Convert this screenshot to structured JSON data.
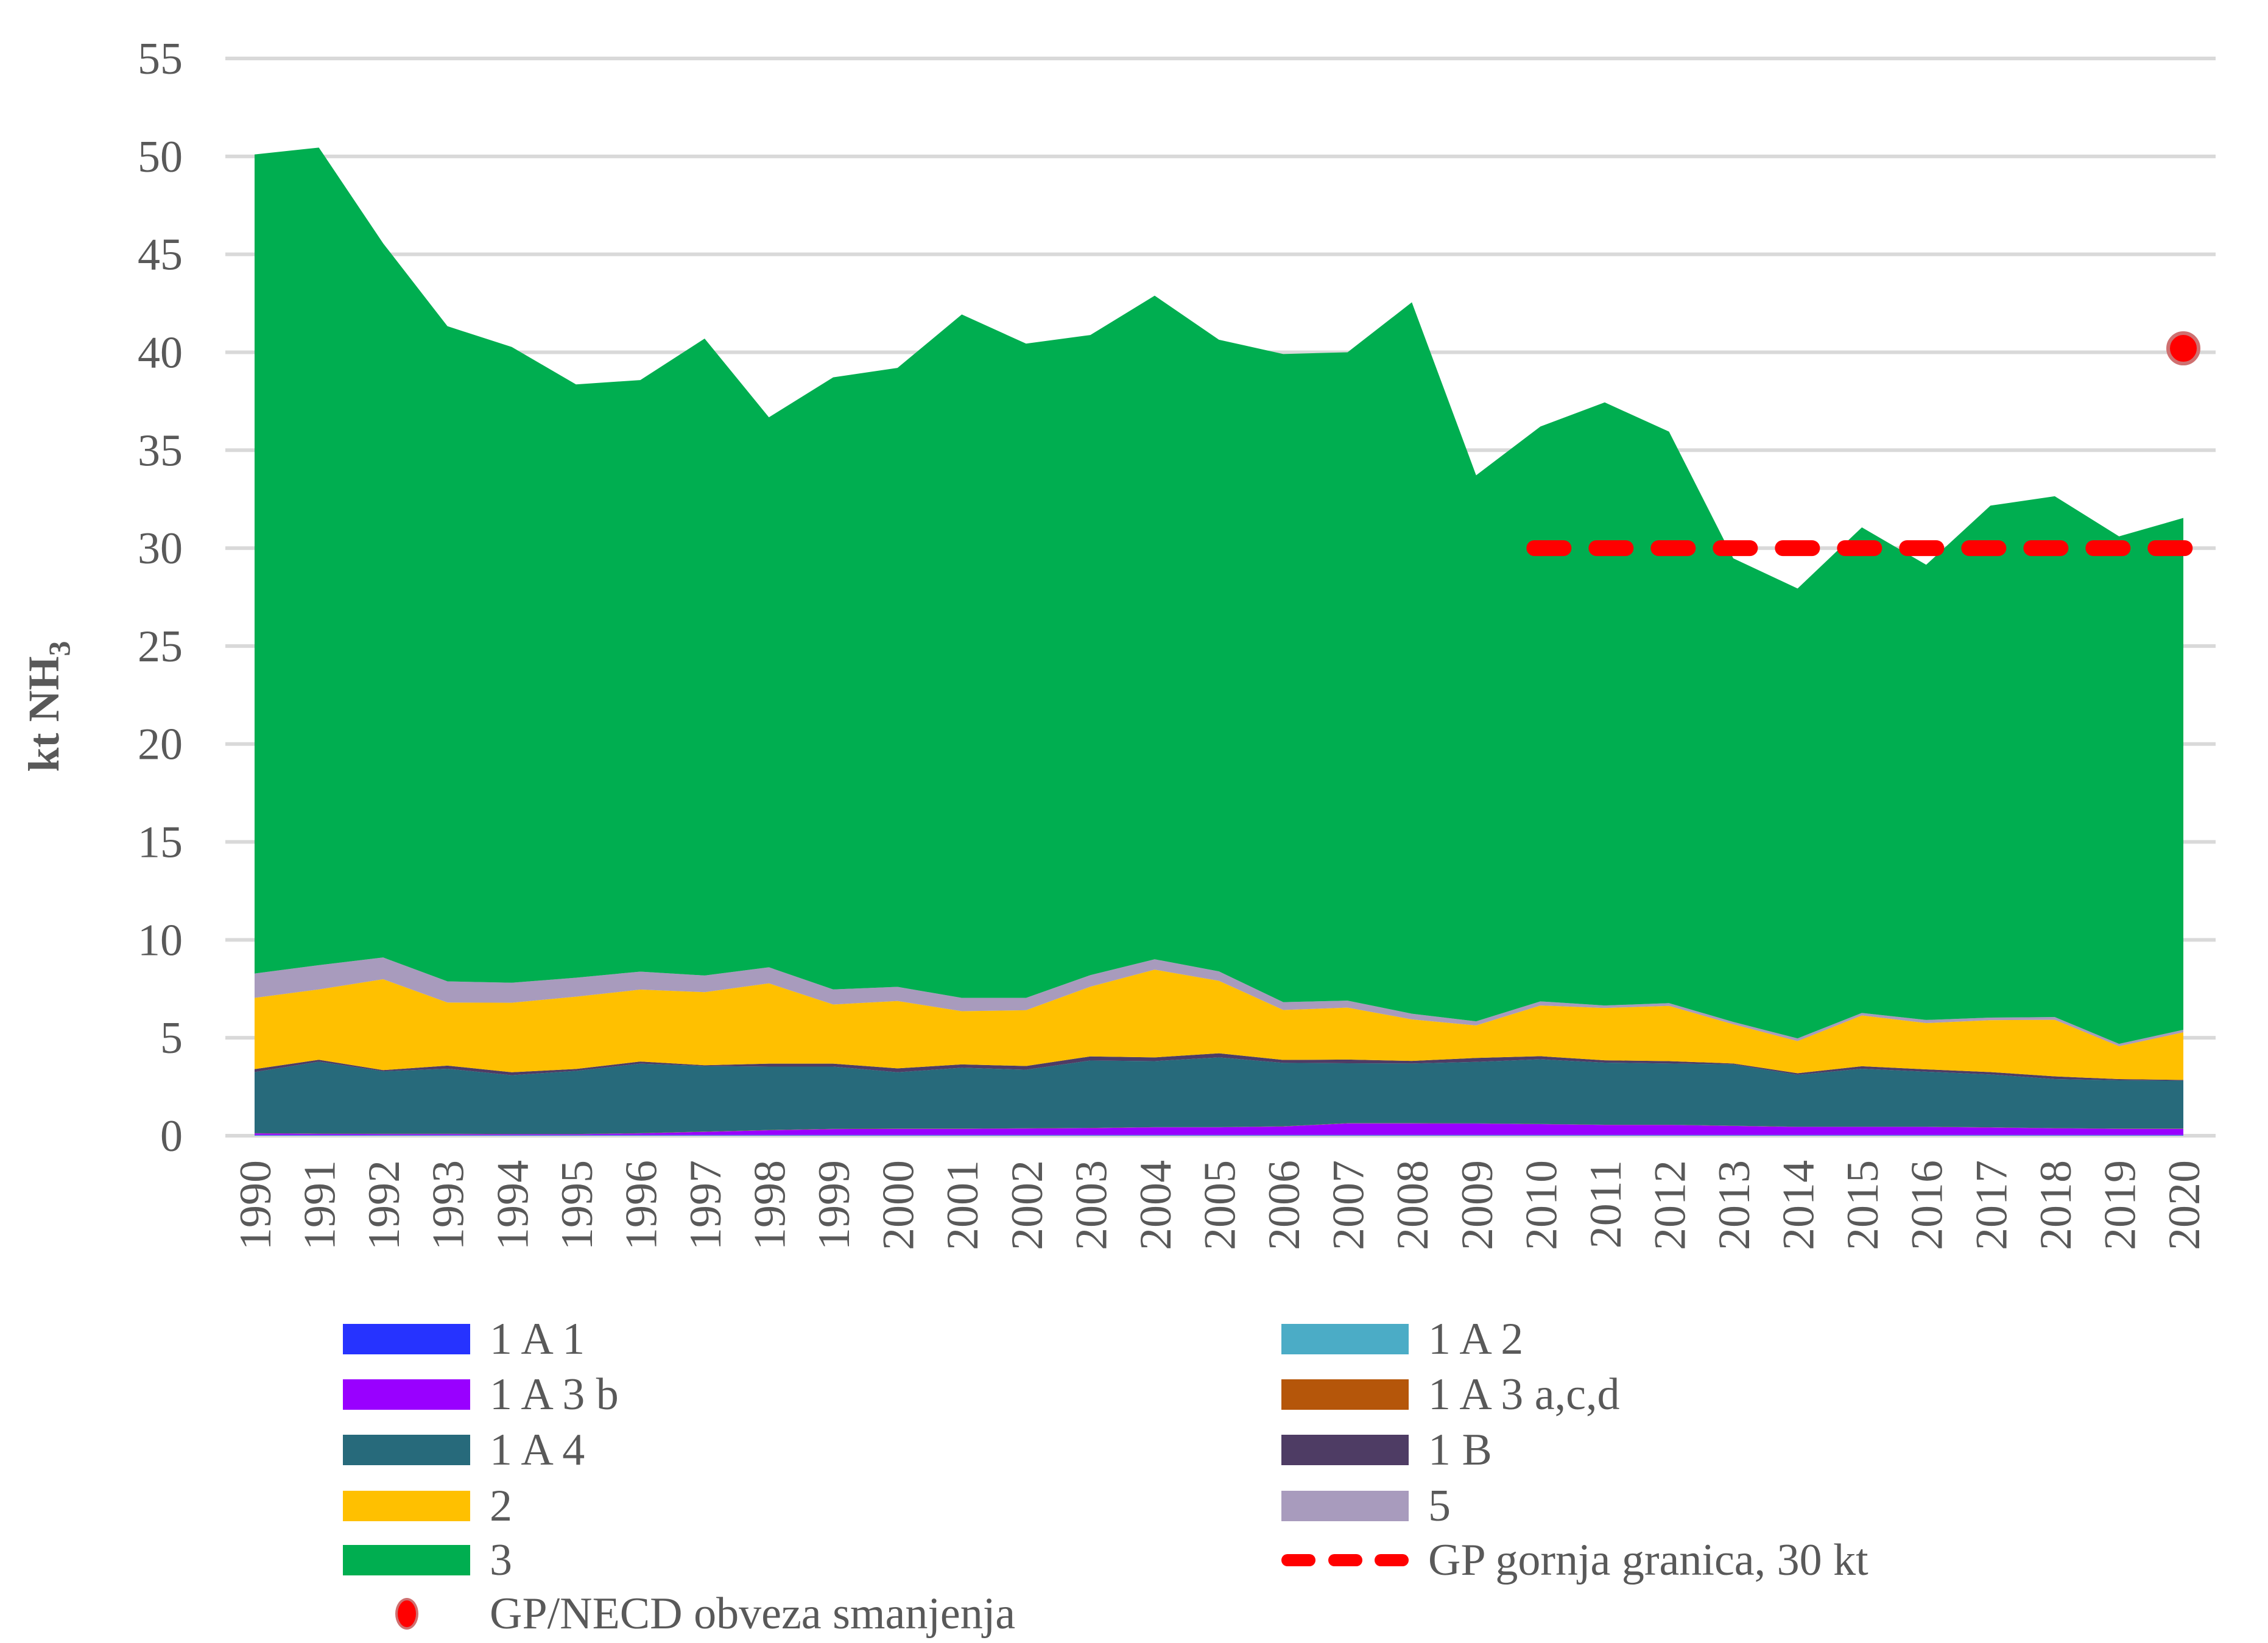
{
  "chart_data": {
    "type": "area",
    "stacked": true,
    "title": "",
    "xlabel": "",
    "ylabel": "kt NH",
    "ylabel_subscript": "3",
    "ylim": [
      0,
      55
    ],
    "yticks": [
      0,
      5,
      10,
      15,
      20,
      25,
      30,
      35,
      40,
      45,
      50,
      55
    ],
    "grid": true,
    "legend_position": "bottom",
    "categories": [
      "1990",
      "1991",
      "1992",
      "1993",
      "1994",
      "1995",
      "1996",
      "1997",
      "1998",
      "1999",
      "2000",
      "2001",
      "2002",
      "2003",
      "2004",
      "2005",
      "2006",
      "2007",
      "2008",
      "2009",
      "2010",
      "2011",
      "2012",
      "2013",
      "2014",
      "2015",
      "2016",
      "2017",
      "2018",
      "2019",
      "2020"
    ],
    "series": [
      {
        "name": "1 A 1",
        "color": "#2633ff",
        "values": [
          0.02,
          0.02,
          0.02,
          0.02,
          0.02,
          0.02,
          0.02,
          0.02,
          0.02,
          0.02,
          0.02,
          0.02,
          0.02,
          0.02,
          0.02,
          0.02,
          0.02,
          0.02,
          0.02,
          0.02,
          0.02,
          0.02,
          0.02,
          0.02,
          0.02,
          0.02,
          0.02,
          0.02,
          0.02,
          0.02,
          0.02
        ]
      },
      {
        "name": "1 A 2",
        "color": "#4bacc6",
        "values": [
          0.02,
          0.02,
          0.02,
          0.02,
          0.02,
          0.02,
          0.02,
          0.02,
          0.02,
          0.02,
          0.02,
          0.02,
          0.02,
          0.02,
          0.02,
          0.02,
          0.02,
          0.02,
          0.02,
          0.02,
          0.02,
          0.02,
          0.02,
          0.02,
          0.02,
          0.02,
          0.02,
          0.02,
          0.02,
          0.02,
          0.02
        ]
      },
      {
        "name": "1 A 3 b",
        "color": "#9900ff",
        "values": [
          0.08,
          0.06,
          0.05,
          0.05,
          0.04,
          0.04,
          0.08,
          0.16,
          0.24,
          0.3,
          0.31,
          0.31,
          0.33,
          0.35,
          0.39,
          0.39,
          0.43,
          0.59,
          0.59,
          0.58,
          0.55,
          0.51,
          0.51,
          0.46,
          0.41,
          0.41,
          0.41,
          0.38,
          0.34,
          0.31,
          0.31
        ]
      },
      {
        "name": "1 A 3 a,c,d",
        "color": "#b5560a",
        "values": [
          0.01,
          0.01,
          0.01,
          0.01,
          0.01,
          0.01,
          0.01,
          0.01,
          0.01,
          0.01,
          0.01,
          0.01,
          0.01,
          0.01,
          0.01,
          0.01,
          0.01,
          0.01,
          0.01,
          0.01,
          0.01,
          0.01,
          0.01,
          0.01,
          0.01,
          0.01,
          0.01,
          0.01,
          0.01,
          0.01,
          0.01
        ]
      },
      {
        "name": "1 A 4",
        "color": "#276a7b",
        "values": [
          3.12,
          3.67,
          3.19,
          3.32,
          3.0,
          3.22,
          3.55,
          3.35,
          3.24,
          3.18,
          2.88,
          3.11,
          2.99,
          3.44,
          3.37,
          3.56,
          3.24,
          3.06,
          3.05,
          3.14,
          3.3,
          3.17,
          3.13,
          3.13,
          2.65,
          2.96,
          2.81,
          2.7,
          2.5,
          2.47,
          2.45
        ]
      },
      {
        "name": "1 B",
        "color": "#4e3c64",
        "values": [
          0.15,
          0.1,
          0.06,
          0.16,
          0.15,
          0.1,
          0.11,
          0.04,
          0.15,
          0.15,
          0.2,
          0.17,
          0.19,
          0.21,
          0.19,
          0.21,
          0.15,
          0.19,
          0.13,
          0.2,
          0.16,
          0.12,
          0.12,
          0.05,
          0.08,
          0.13,
          0.12,
          0.12,
          0.14,
          0.06,
          0.04
        ]
      },
      {
        "name": "2",
        "color": "#ffc000",
        "values": [
          3.64,
          3.59,
          4.64,
          3.22,
          3.55,
          3.69,
          3.67,
          3.73,
          4.1,
          3.02,
          3.44,
          2.72,
          2.85,
          3.56,
          4.48,
          3.7,
          2.55,
          2.65,
          2.12,
          1.66,
          2.59,
          2.67,
          2.82,
          2.0,
          1.64,
          2.59,
          2.36,
          2.65,
          2.89,
          1.68,
          2.43
        ]
      },
      {
        "name": "5",
        "color": "#a89bbd",
        "values": [
          1.24,
          1.24,
          1.11,
          1.08,
          1.02,
          0.97,
          0.92,
          0.85,
          0.82,
          0.77,
          0.72,
          0.68,
          0.63,
          0.59,
          0.53,
          0.48,
          0.4,
          0.36,
          0.29,
          0.21,
          0.21,
          0.13,
          0.14,
          0.12,
          0.14,
          0.13,
          0.16,
          0.13,
          0.14,
          0.12,
          0.13
        ]
      },
      {
        "name": "3",
        "color": "#00ae50",
        "values": [
          41.82,
          41.74,
          36.46,
          33.45,
          32.46,
          30.29,
          30.2,
          32.52,
          28.08,
          31.25,
          31.6,
          34.89,
          33.4,
          32.68,
          33.88,
          32.25,
          33.09,
          33.1,
          36.32,
          27.88,
          29.35,
          30.79,
          29.18,
          23.67,
          22.97,
          24.79,
          23.24,
          26.14,
          26.59,
          25.91,
          26.13
        ]
      }
    ],
    "totals": [
      50.1,
      50.45,
      45.56,
      41.33,
      40.27,
      38.36,
      38.58,
      40.7,
      36.68,
      38.72,
      39.2,
      41.93,
      40.44,
      40.88,
      42.89,
      40.64,
      39.91,
      40.0,
      42.55,
      33.72,
      36.21,
      37.44,
      35.97,
      29.48,
      27.95,
      31.05,
      29.14,
      32.17,
      32.66,
      30.6,
      31.54
    ],
    "reference_line": {
      "name": "GP gornja granica, 30 kt",
      "color": "#ff0000",
      "value": 30,
      "x_start": "2010",
      "x_end": "2020",
      "style": "dashed"
    },
    "marker": {
      "name": "GP/NECD obveza smanjenja",
      "color": "#ff0000",
      "edge_color": "#cf7070",
      "x": "2020",
      "value": 40.2
    }
  },
  "legend": {
    "left": [
      "1 A 1",
      "1 A 3 b",
      "1 A 4",
      "2",
      "3"
    ],
    "right": [
      "1 A 2",
      "1 A 3 a,c,d",
      "1 B",
      "5"
    ],
    "line_label": "GP gornja granica, 30 kt",
    "marker_label": "GP/NECD obveza smanjenja"
  },
  "colors": {
    "grid": "#d9d9d9",
    "text": "#595959"
  }
}
